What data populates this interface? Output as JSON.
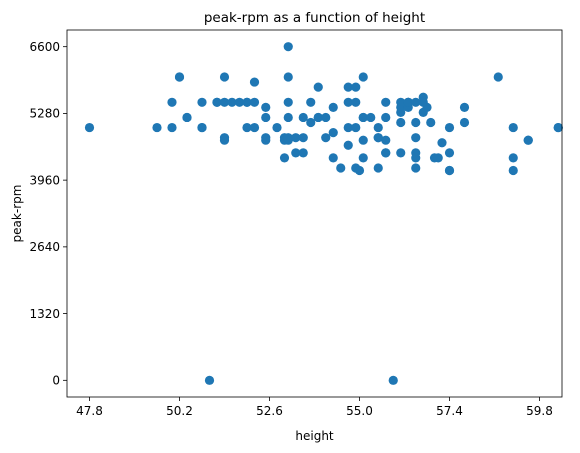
{
  "chart_data": {
    "type": "scatter",
    "title": "peak-rpm as a function of height",
    "xlabel": "height",
    "ylabel": "peak-rpm",
    "xlim": [
      47.2,
      60.4
    ],
    "ylim": [
      -330,
      6930
    ],
    "xticks": [
      47.8,
      50.2,
      52.6,
      55.0,
      57.4,
      59.8
    ],
    "xtick_labels": [
      "47.8",
      "50.2",
      "52.6",
      "55.0",
      "57.4",
      "59.8"
    ],
    "yticks": [
      0,
      1320,
      2640,
      3960,
      5280,
      6600
    ],
    "ytick_labels": [
      "0",
      "1320",
      "2640",
      "3960",
      "5280",
      "6600"
    ],
    "grid": false,
    "color": "#1f77b4",
    "points": [
      [
        47.8,
        5000
      ],
      [
        49.6,
        5000
      ],
      [
        50.0,
        5500
      ],
      [
        50.0,
        5000
      ],
      [
        50.2,
        6000
      ],
      [
        50.2,
        6000
      ],
      [
        50.4,
        5200
      ],
      [
        50.4,
        5200
      ],
      [
        50.8,
        5500
      ],
      [
        50.8,
        5000
      ],
      [
        50.8,
        5000
      ],
      [
        51.0,
        0
      ],
      [
        51.2,
        5500
      ],
      [
        51.2,
        5500
      ],
      [
        51.4,
        6000
      ],
      [
        51.4,
        4750
      ],
      [
        51.4,
        4800
      ],
      [
        51.4,
        5500
      ],
      [
        51.6,
        5500
      ],
      [
        51.8,
        5500
      ],
      [
        52.0,
        5000
      ],
      [
        52.0,
        5500
      ],
      [
        52.0,
        5500
      ],
      [
        52.2,
        5900
      ],
      [
        52.2,
        5500
      ],
      [
        52.2,
        5000
      ],
      [
        52.5,
        5400
      ],
      [
        52.5,
        5200
      ],
      [
        52.5,
        4800
      ],
      [
        52.5,
        4750
      ],
      [
        52.8,
        5000
      ],
      [
        53.0,
        4400
      ],
      [
        53.0,
        4800
      ],
      [
        53.0,
        4750
      ],
      [
        53.1,
        6600
      ],
      [
        53.1,
        6000
      ],
      [
        53.1,
        5500
      ],
      [
        53.1,
        5200
      ],
      [
        53.1,
        4800
      ],
      [
        53.1,
        4750
      ],
      [
        53.3,
        4800
      ],
      [
        53.3,
        4500
      ],
      [
        53.5,
        4800
      ],
      [
        53.5,
        4500
      ],
      [
        53.5,
        5200
      ],
      [
        53.7,
        5500
      ],
      [
        53.7,
        5100
      ],
      [
        53.9,
        5800
      ],
      [
        53.9,
        5200
      ],
      [
        53.9,
        5200
      ],
      [
        54.1,
        5200
      ],
      [
        54.1,
        4800
      ],
      [
        54.3,
        5400
      ],
      [
        54.3,
        4900
      ],
      [
        54.3,
        4400
      ],
      [
        54.5,
        4200
      ],
      [
        54.7,
        5800
      ],
      [
        54.7,
        5500
      ],
      [
        54.7,
        5000
      ],
      [
        54.7,
        4650
      ],
      [
        54.9,
        5800
      ],
      [
        54.9,
        5500
      ],
      [
        54.9,
        4200
      ],
      [
        54.9,
        5000
      ],
      [
        55.0,
        4150
      ],
      [
        55.1,
        6000
      ],
      [
        55.1,
        5200
      ],
      [
        55.1,
        4750
      ],
      [
        55.1,
        4400
      ],
      [
        55.1,
        5200
      ],
      [
        55.3,
        5200
      ],
      [
        55.5,
        5000
      ],
      [
        55.5,
        4800
      ],
      [
        55.5,
        4200
      ],
      [
        55.5,
        4800
      ],
      [
        55.7,
        5500
      ],
      [
        55.7,
        5200
      ],
      [
        55.7,
        4750
      ],
      [
        55.7,
        4500
      ],
      [
        55.7,
        4500
      ],
      [
        55.9,
        0
      ],
      [
        56.1,
        5500
      ],
      [
        56.1,
        5400
      ],
      [
        56.1,
        5300
      ],
      [
        56.1,
        5100
      ],
      [
        56.1,
        4500
      ],
      [
        56.3,
        5500
      ],
      [
        56.3,
        5400
      ],
      [
        56.3,
        5500
      ],
      [
        56.3,
        5500
      ],
      [
        56.5,
        5500
      ],
      [
        56.5,
        5100
      ],
      [
        56.5,
        4800
      ],
      [
        56.5,
        4500
      ],
      [
        56.5,
        4200
      ],
      [
        56.5,
        4400
      ],
      [
        56.7,
        5600
      ],
      [
        56.7,
        5500
      ],
      [
        56.7,
        5300
      ],
      [
        56.8,
        5400
      ],
      [
        56.9,
        5100
      ],
      [
        57.0,
        4400
      ],
      [
        57.1,
        4400
      ],
      [
        57.2,
        4700
      ],
      [
        57.4,
        4150
      ],
      [
        57.4,
        4500
      ],
      [
        57.4,
        5000
      ],
      [
        57.4,
        4150
      ],
      [
        57.8,
        5400
      ],
      [
        57.8,
        5100
      ],
      [
        58.7,
        6000
      ],
      [
        59.1,
        5000
      ],
      [
        59.1,
        4400
      ],
      [
        59.1,
        4150
      ],
      [
        59.5,
        4750
      ],
      [
        59.5,
        4750
      ],
      [
        60.3,
        5000
      ],
      [
        60.3,
        5000
      ]
    ]
  }
}
